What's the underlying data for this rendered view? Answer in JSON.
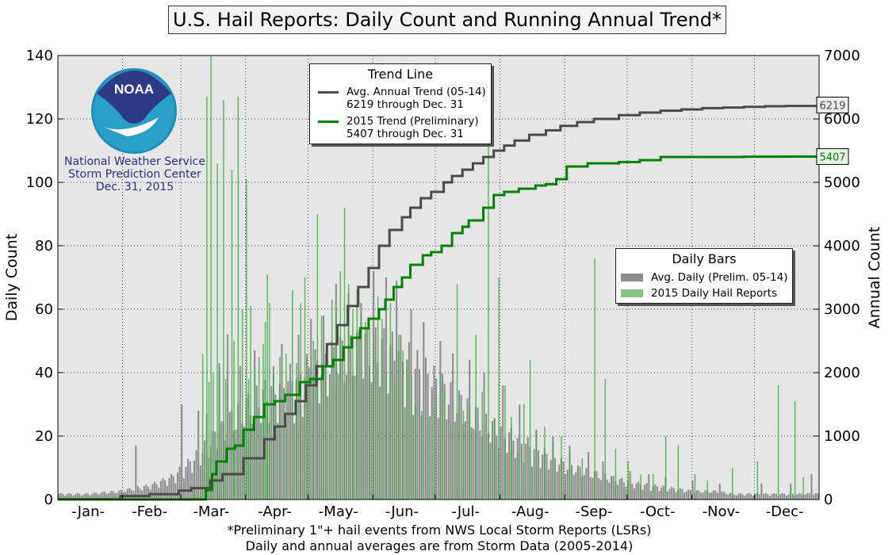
{
  "title": "U.S. Hail Reports: Daily Count and Running Annual Trend*",
  "footnote": {
    "line1": "*Preliminary 1\"+ hail events from NWS Local Storm Reports (LSRs)",
    "line2": "Daily and annual averages are from Storm Data (2005-2014)"
  },
  "logo": {
    "icon": "noaa-logo",
    "text": "NOAA",
    "line1": "National Weather Service",
    "line2": "Storm Prediction Center",
    "line3": "Dec. 31, 2015"
  },
  "trend_legend": {
    "title": "Trend Line",
    "avg_label_1": "Avg. Annual Trend (05-14)",
    "avg_label_2": "6219 through Dec. 31",
    "y2015_label_1": "2015 Trend (Preliminary)",
    "y2015_label_2": "5407 through Dec. 31"
  },
  "bars_legend": {
    "title": "Daily Bars",
    "avg_label": "Avg. Daily (Prelim. 05-14)",
    "y2015_label": "2015 Daily Hail Reports"
  },
  "colors": {
    "plot_bg": "#e6e6e6",
    "avg_bar": "#8c8c8c",
    "bar_2015": "#3fa93f",
    "avg_trend": "#4a4a4a",
    "trend_2015": "#008000",
    "logo_text": "#2b2f7a"
  },
  "chart_data": {
    "type": "bar",
    "title": "U.S. Hail Reports: Daily Count and Running Annual Trend*",
    "xlabel": "",
    "ylabel": "Daily Count",
    "y2label": "Annual Count",
    "ylim": [
      0,
      140
    ],
    "y2lim": [
      0,
      7000
    ],
    "yticks": [
      0,
      20,
      40,
      60,
      80,
      100,
      120,
      140
    ],
    "y2ticks": [
      0,
      1000,
      2000,
      3000,
      4000,
      5000,
      6000,
      7000
    ],
    "x_axis": "day of year 2015 (1-365)",
    "month_labels": [
      "-Jan-",
      "-Feb-",
      "-Mar-",
      "-Apr-",
      "-May-",
      "-Jun-",
      "-Jul-",
      "-Aug-",
      "-Sep-",
      "-Oct-",
      "-Nov-",
      "-Dec-"
    ],
    "month_label_days": [
      15.5,
      45,
      74.5,
      105,
      135.5,
      166,
      196.5,
      227.5,
      258,
      288.5,
      319,
      349.5
    ],
    "grid": true,
    "series": [
      {
        "name": "Avg. Daily (Prelim. 05-14)",
        "kind": "bar",
        "axis": "left",
        "envelope_days": [
          1,
          15,
          30,
          45,
          55,
          65,
          75,
          85,
          95,
          105,
          115,
          125,
          135,
          145,
          155,
          165,
          175,
          185,
          195,
          205,
          215,
          225,
          235,
          245,
          255,
          265,
          275,
          285,
          295,
          305,
          315,
          325,
          335,
          345,
          355,
          365
        ],
        "envelope_values": [
          2,
          2,
          3,
          5,
          8,
          14,
          22,
          30,
          36,
          40,
          44,
          48,
          52,
          55,
          55,
          52,
          46,
          40,
          34,
          28,
          24,
          20,
          16,
          12,
          10,
          8,
          6,
          5,
          4,
          3,
          3,
          2,
          2,
          2,
          2,
          2
        ],
        "spikes": [
          [
            38,
            17
          ],
          [
            60,
            30
          ],
          [
            68,
            28
          ],
          [
            72,
            27
          ],
          [
            78,
            43
          ],
          [
            82,
            52
          ],
          [
            88,
            42
          ],
          [
            95,
            47
          ],
          [
            104,
            42
          ],
          [
            108,
            49
          ],
          [
            116,
            52
          ],
          [
            122,
            57
          ],
          [
            128,
            58
          ],
          [
            134,
            68
          ],
          [
            140,
            65
          ],
          [
            146,
            62
          ],
          [
            152,
            72
          ],
          [
            158,
            70
          ],
          [
            163,
            69
          ],
          [
            170,
            60
          ],
          [
            176,
            56
          ],
          [
            184,
            50
          ],
          [
            190,
            46
          ],
          [
            198,
            44
          ],
          [
            205,
            40
          ],
          [
            214,
            36
          ],
          [
            222,
            30
          ],
          [
            230,
            22
          ],
          [
            238,
            20
          ],
          [
            246,
            17
          ],
          [
            255,
            15
          ],
          [
            262,
            12
          ],
          [
            275,
            9
          ],
          [
            284,
            8
          ],
          [
            292,
            7
          ],
          [
            305,
            6
          ],
          [
            318,
            5
          ],
          [
            338,
            5
          ],
          [
            352,
            5
          ],
          [
            362,
            8
          ]
        ]
      },
      {
        "name": "2015 Daily Hail Reports",
        "kind": "bar",
        "axis": "left",
        "days": [
          66,
          70,
          72,
          73,
          74,
          75,
          77,
          78,
          80,
          81,
          84,
          85,
          87,
          89,
          91,
          92,
          93,
          95,
          97,
          99,
          100,
          101,
          102,
          104,
          107,
          110,
          113,
          115,
          117,
          119,
          121,
          123,
          125,
          127,
          129,
          132,
          134,
          136,
          138,
          140,
          142,
          144,
          146,
          148,
          150,
          152,
          154,
          156,
          158,
          160,
          162,
          164,
          166,
          168,
          170,
          172,
          175,
          178,
          181,
          184,
          186,
          189,
          192,
          195,
          198,
          201,
          204,
          207,
          210,
          212,
          215,
          218,
          221,
          224,
          227,
          230,
          234,
          238,
          242,
          246,
          252,
          258,
          263,
          268,
          274,
          280,
          286,
          292,
          298,
          306,
          312,
          324,
          336,
          346,
          352,
          354,
          358
        ],
        "values": [
          4,
          46,
          127,
          37,
          140,
          40,
          106,
          40,
          126,
          38,
          104,
          50,
          127,
          60,
          101,
          38,
          61,
          42,
          45,
          49,
          56,
          71,
          62,
          40,
          45,
          46,
          66,
          43,
          62,
          70,
          40,
          50,
          90,
          58,
          44,
          63,
          60,
          72,
          92,
          68,
          60,
          66,
          58,
          56,
          54,
          50,
          64,
          57,
          40,
          62,
          37,
          52,
          47,
          44,
          39,
          30,
          28,
          26,
          30,
          40,
          35,
          24,
          68,
          28,
          30,
          52,
          34,
          120,
          25,
          70,
          36,
          26,
          15,
          30,
          44,
          22,
          23,
          18,
          20,
          15,
          13,
          76,
          38,
          16,
          12,
          8,
          8,
          20,
          17,
          8,
          6,
          10,
          12,
          36,
          4,
          31,
          7
        ]
      },
      {
        "name": "Avg. Annual Trend (05-14)",
        "kind": "line",
        "axis": "right",
        "total_label": "6219",
        "x": [
          1,
          31,
          45,
          59,
          65,
          74,
          80,
          90,
          100,
          105,
          110,
          115,
          120,
          125,
          130,
          135,
          140,
          145,
          150,
          155,
          160,
          166,
          170,
          175,
          180,
          186,
          190,
          195,
          200,
          205,
          210,
          215,
          220,
          227,
          235,
          242,
          250,
          258,
          270,
          280,
          290,
          300,
          310,
          320,
          330,
          340,
          350,
          365
        ],
        "y": [
          5,
          55,
          85,
          140,
          180,
          300,
          400,
          650,
          950,
          1150,
          1350,
          1550,
          1800,
          2100,
          2450,
          2750,
          3050,
          3350,
          3650,
          4000,
          4250,
          4450,
          4600,
          4750,
          4850,
          5000,
          5100,
          5200,
          5300,
          5400,
          5500,
          5580,
          5660,
          5750,
          5820,
          5890,
          5950,
          6000,
          6060,
          6100,
          6130,
          6150,
          6170,
          6180,
          6190,
          6200,
          6205,
          6219
        ]
      },
      {
        "name": "2015 Trend (Preliminary)",
        "kind": "line",
        "axis": "right",
        "total_label": "5407",
        "x": [
          1,
          60,
          66,
          72,
          75,
          77,
          82,
          86,
          90,
          95,
          100,
          105,
          110,
          117,
          122,
          128,
          133,
          138,
          142,
          146,
          150,
          155,
          158,
          162,
          166,
          170,
          176,
          180,
          185,
          190,
          195,
          198,
          205,
          210,
          215,
          222,
          230,
          235,
          240,
          245,
          255,
          260,
          270,
          280,
          290,
          300,
          310,
          320,
          330,
          340,
          350,
          358,
          365
        ],
        "y": [
          0,
          0,
          2,
          150,
          400,
          600,
          800,
          850,
          1100,
          1300,
          1500,
          1550,
          1650,
          1850,
          1900,
          2100,
          2200,
          2400,
          2550,
          2700,
          2850,
          3000,
          3150,
          3350,
          3500,
          3700,
          3850,
          3900,
          4000,
          4200,
          4300,
          4400,
          4600,
          4800,
          4850,
          4900,
          4950,
          4970,
          5050,
          5250,
          5300,
          5300,
          5320,
          5350,
          5400,
          5400,
          5400,
          5400,
          5405,
          5405,
          5407,
          5407,
          5407
        ]
      }
    ]
  }
}
